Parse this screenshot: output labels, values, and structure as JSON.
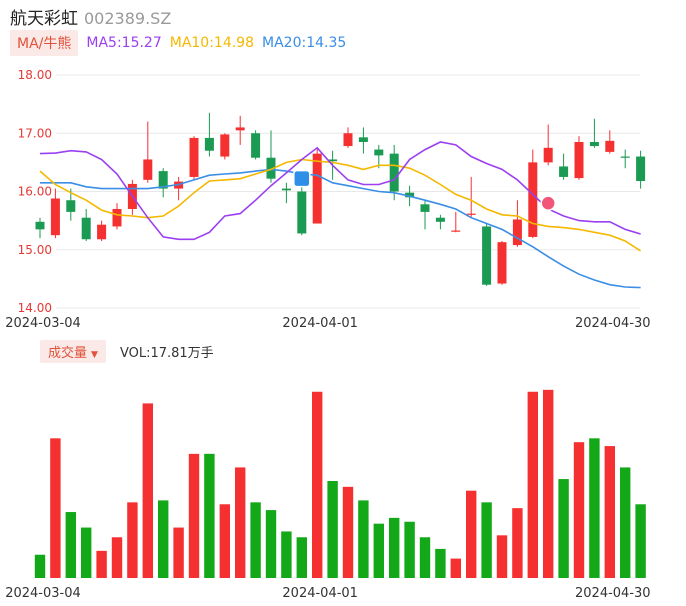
{
  "header": {
    "name": "航天彩虹",
    "code": "002389.SZ"
  },
  "ma_legend": {
    "tag": "MA/牛熊",
    "ma5": "MA5:15.27",
    "ma10": "MA10:14.98",
    "ma20": "MA20:14.35",
    "colors": {
      "ma5": "#9b3ff0",
      "ma10": "#f5b800",
      "ma20": "#3a8ee6"
    }
  },
  "volume_legend": {
    "tag": "成交量",
    "value": "VOL:17.81万手"
  },
  "colors": {
    "up": "#f53030",
    "down": "#1a9a52",
    "vol_down": "#13a818",
    "axis_text": "#e53935",
    "grid": "#e8e8e8"
  },
  "chart_data": {
    "type": "candlestick",
    "y_ticks": [
      "18.00",
      "17.00",
      "16.00",
      "15.00",
      "14.00"
    ],
    "ylim": [
      14.0,
      18.0
    ],
    "x_labels": [
      "2024-03-04",
      "2024-04-01",
      "2024-04-30"
    ],
    "candles": [
      {
        "o": 15.48,
        "c": 15.35,
        "h": 15.55,
        "l": 15.2
      },
      {
        "o": 15.25,
        "c": 15.88,
        "h": 16.05,
        "l": 15.2
      },
      {
        "o": 15.85,
        "c": 15.65,
        "h": 16.05,
        "l": 15.5
      },
      {
        "o": 15.55,
        "c": 15.18,
        "h": 15.7,
        "l": 15.15
      },
      {
        "o": 15.18,
        "c": 15.43,
        "h": 15.5,
        "l": 15.15
      },
      {
        "o": 15.4,
        "c": 15.7,
        "h": 15.8,
        "l": 15.35
      },
      {
        "o": 15.7,
        "c": 16.13,
        "h": 16.2,
        "l": 15.6
      },
      {
        "o": 16.2,
        "c": 16.55,
        "h": 17.2,
        "l": 16.15
      },
      {
        "o": 16.35,
        "c": 16.05,
        "h": 16.4,
        "l": 15.9
      },
      {
        "o": 16.05,
        "c": 16.17,
        "h": 16.25,
        "l": 15.85
      },
      {
        "o": 16.25,
        "c": 16.92,
        "h": 16.95,
        "l": 16.2
      },
      {
        "o": 16.92,
        "c": 16.7,
        "h": 17.35,
        "l": 16.6
      },
      {
        "o": 16.6,
        "c": 16.98,
        "h": 17.0,
        "l": 16.55
      },
      {
        "o": 17.05,
        "c": 17.1,
        "h": 17.3,
        "l": 16.8
      },
      {
        "o": 17.0,
        "c": 16.58,
        "h": 17.05,
        "l": 16.55
      },
      {
        "o": 16.58,
        "c": 16.22,
        "h": 17.05,
        "l": 16.15
      },
      {
        "o": 16.05,
        "c": 16.02,
        "h": 16.15,
        "l": 15.8
      },
      {
        "o": 16.0,
        "c": 15.28,
        "h": 16.15,
        "l": 15.25
      },
      {
        "o": 15.45,
        "c": 16.65,
        "h": 16.75,
        "l": 15.45
      },
      {
        "o": 16.55,
        "c": 16.52,
        "h": 16.7,
        "l": 16.2
      },
      {
        "o": 16.78,
        "c": 17.0,
        "h": 17.1,
        "l": 16.75
      },
      {
        "o": 16.93,
        "c": 16.85,
        "h": 17.1,
        "l": 16.65
      },
      {
        "o": 16.72,
        "c": 16.62,
        "h": 16.8,
        "l": 16.4
      },
      {
        "o": 16.65,
        "c": 16.0,
        "h": 16.8,
        "l": 15.85
      },
      {
        "o": 15.98,
        "c": 15.9,
        "h": 16.1,
        "l": 15.75
      },
      {
        "o": 15.78,
        "c": 15.65,
        "h": 15.85,
        "l": 15.35
      },
      {
        "o": 15.55,
        "c": 15.48,
        "h": 15.6,
        "l": 15.35
      },
      {
        "o": 15.31,
        "c": 15.33,
        "h": 15.65,
        "l": 15.3
      },
      {
        "o": 15.6,
        "c": 15.62,
        "h": 16.25,
        "l": 15.55
      },
      {
        "o": 15.4,
        "c": 14.4,
        "h": 15.45,
        "l": 14.38
      },
      {
        "o": 14.42,
        "c": 15.13,
        "h": 15.15,
        "l": 14.4
      },
      {
        "o": 15.08,
        "c": 15.52,
        "h": 15.85,
        "l": 15.05
      },
      {
        "o": 15.22,
        "c": 16.5,
        "h": 16.72,
        "l": 15.2
      },
      {
        "o": 16.5,
        "c": 16.75,
        "h": 17.15,
        "l": 16.45
      },
      {
        "o": 16.43,
        "c": 16.25,
        "h": 16.65,
        "l": 16.2
      },
      {
        "o": 16.23,
        "c": 16.85,
        "h": 16.95,
        "l": 16.2
      },
      {
        "o": 16.85,
        "c": 16.78,
        "h": 17.25,
        "l": 16.75
      },
      {
        "o": 16.68,
        "c": 16.87,
        "h": 17.05,
        "l": 16.65
      },
      {
        "o": 16.6,
        "c": 16.58,
        "h": 16.72,
        "l": 16.4
      },
      {
        "o": 16.6,
        "c": 16.18,
        "h": 16.7,
        "l": 16.05
      }
    ],
    "volume": [
      12,
      72,
      34,
      26,
      14,
      21,
      39,
      90,
      40,
      26,
      64,
      64,
      38,
      57,
      39,
      35,
      24,
      21,
      96,
      50,
      47,
      40,
      28,
      31,
      29,
      21,
      15,
      10,
      45,
      39,
      22,
      36,
      96,
      97,
      51,
      70,
      72,
      68,
      57,
      38
    ],
    "ma5": [
      16.65,
      16.66,
      16.7,
      16.68,
      16.55,
      16.3,
      15.92,
      15.55,
      15.22,
      15.18,
      15.18,
      15.3,
      15.58,
      15.62,
      15.85,
      16.1,
      16.32,
      16.55,
      16.75,
      16.45,
      16.2,
      16.12,
      16.12,
      16.2,
      16.55,
      16.72,
      16.85,
      16.8,
      16.6,
      16.48,
      16.38,
      16.2,
      15.95,
      15.7,
      15.58,
      15.5,
      15.48,
      15.48,
      15.35,
      15.27
    ],
    "ma10": [
      16.35,
      16.12,
      15.98,
      15.85,
      15.68,
      15.6,
      15.58,
      15.55,
      15.58,
      15.75,
      15.98,
      16.18,
      16.2,
      16.22,
      16.3,
      16.38,
      16.5,
      16.55,
      16.52,
      16.5,
      16.45,
      16.38,
      16.45,
      16.45,
      16.4,
      16.28,
      16.12,
      15.95,
      15.85,
      15.7,
      15.6,
      15.58,
      15.45,
      15.4,
      15.38,
      15.35,
      15.3,
      15.25,
      15.15,
      14.98
    ],
    "ma20": [
      16.15,
      16.15,
      16.15,
      16.08,
      16.05,
      16.05,
      16.05,
      16.05,
      16.08,
      16.12,
      16.2,
      16.28,
      16.3,
      16.32,
      16.35,
      16.38,
      16.35,
      16.3,
      16.28,
      16.15,
      16.1,
      16.05,
      16.0,
      15.98,
      15.92,
      15.85,
      15.78,
      15.7,
      15.55,
      15.45,
      15.35,
      15.2,
      15.05,
      14.88,
      14.72,
      14.58,
      14.48,
      14.4,
      14.36,
      14.35
    ]
  }
}
